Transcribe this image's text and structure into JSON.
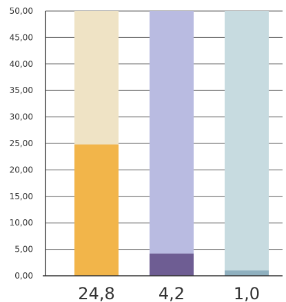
{
  "chart_data": {
    "type": "bar",
    "stacked_background": true,
    "categories": [
      "24,8",
      "4,2",
      "1,0"
    ],
    "values": [
      24.8,
      4.2,
      1.0
    ],
    "max_values": [
      50,
      50,
      50
    ],
    "ylim": [
      0,
      50
    ],
    "yticks": [
      0,
      5,
      10,
      15,
      20,
      25,
      30,
      35,
      40,
      45,
      50
    ],
    "ytick_labels": [
      "0,00",
      "5,00",
      "10,00",
      "15,00",
      "20,00",
      "25,00",
      "30,00",
      "35,00",
      "40,00",
      "45,00",
      "50,00"
    ],
    "grid": true,
    "title": "",
    "xlabel": "",
    "ylabel": "",
    "colors": {
      "bar_fill": [
        "#f2b54a",
        "#6e5d93",
        "#8fb0bf"
      ],
      "bar_background": [
        "#efe3c5",
        "#b9bbe1",
        "#c7dbe0"
      ],
      "grid": "#555555",
      "axis": "#333333"
    }
  }
}
